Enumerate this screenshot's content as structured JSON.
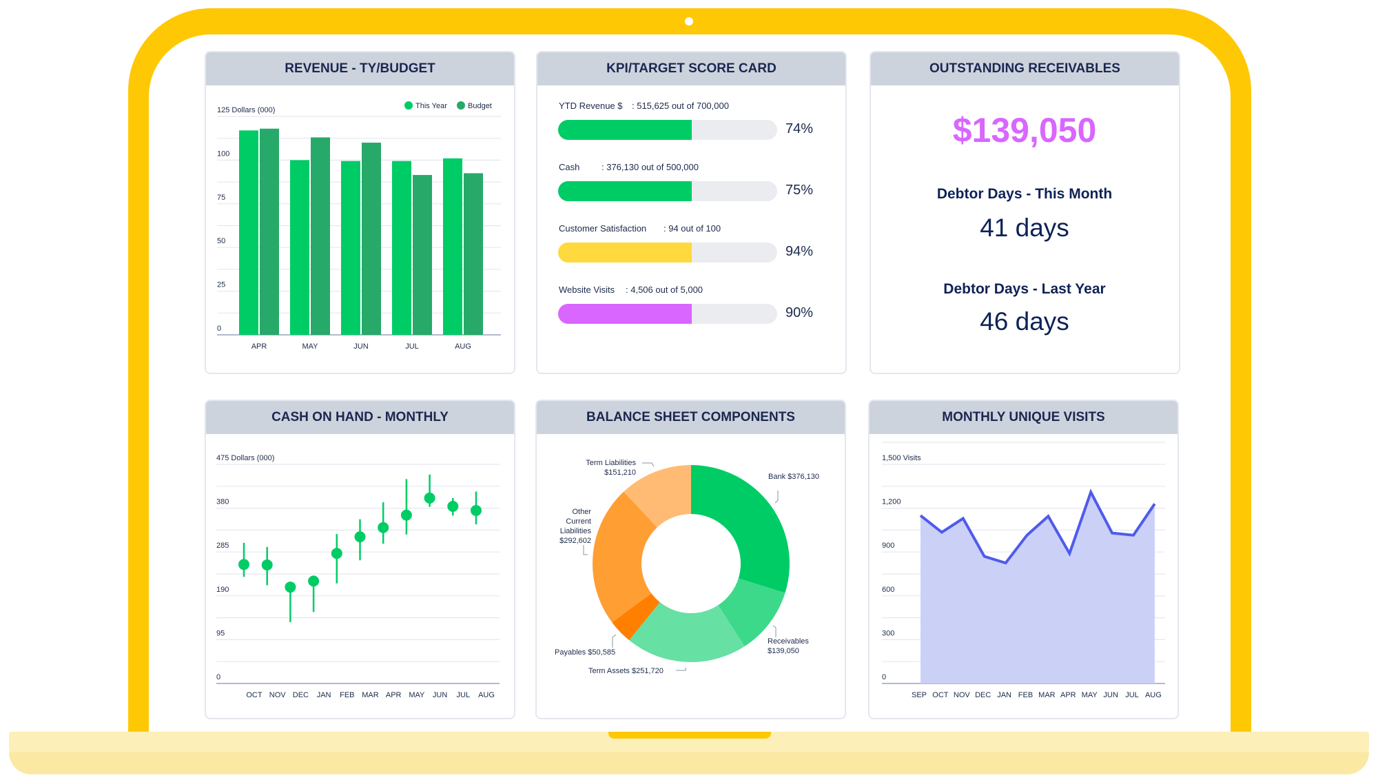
{
  "colors": {
    "bezel": "#FFC805",
    "header_bg": "#CDD3DD",
    "this_year": "#00CC66",
    "budget": "#27A96A",
    "kpi_green": "#00CC66",
    "kpi_yellow": "#FFD93D",
    "kpi_purple": "#D966FF",
    "visits_line": "#4F5BEB",
    "visits_fill": "#C8CEF7",
    "receivables_amount": "#D966FF"
  },
  "panels": {
    "revenue": {
      "title": "REVENUE - TY/BUDGET"
    },
    "kpi": {
      "title": "KPI/TARGET SCORE CARD"
    },
    "receivables": {
      "title": "OUTSTANDING RECEIVABLES"
    },
    "cash": {
      "title": "CASH ON HAND - MONTHLY"
    },
    "balance": {
      "title": "BALANCE SHEET COMPONENTS"
    },
    "visits": {
      "title": "MONTHLY UNIQUE VISITS"
    }
  },
  "kpi": {
    "items": [
      {
        "label": "YTD Revenue $",
        "detail": ": 515,625 out of 700,000",
        "percent": "74%",
        "fill": 0.61,
        "color": "#00CC66"
      },
      {
        "label": "Cash",
        "detail": ": 376,130 out of 500,000",
        "percent": "75%",
        "fill": 0.61,
        "color": "#00CC66"
      },
      {
        "label": "Customer Satisfaction",
        "detail": ": 94 out of 100",
        "percent": "94%",
        "fill": 0.61,
        "color": "#FFD93D"
      },
      {
        "label": "Website Visits",
        "detail": ": 4,506 out of 5,000",
        "percent": "90%",
        "fill": 0.61,
        "color": "#D966FF"
      }
    ]
  },
  "receivables": {
    "amount": "$139,050",
    "this_month_label": "Debtor Days - This Month",
    "this_month_value": "41 days",
    "last_year_label": "Debtor Days - Last Year",
    "last_year_value": "46 days"
  },
  "chart_data": [
    {
      "type": "bar",
      "title": "REVENUE - TY/BUDGET",
      "ylabel": "Dollars (000)",
      "categories": [
        "APR",
        "MAY",
        "JUN",
        "JUL",
        "AUG"
      ],
      "series": [
        {
          "name": "This Year",
          "values": [
            117,
            100,
            99.5,
            99.5,
            101
          ]
        },
        {
          "name": "Budget",
          "values": [
            118,
            113,
            110,
            91.5,
            92.5
          ]
        }
      ],
      "ylim": [
        0,
        125
      ],
      "yticks": [
        "0",
        "25",
        "50",
        "75",
        "100",
        "125"
      ],
      "grid": true,
      "legend": "top-right"
    },
    {
      "type": "scatter",
      "title": "CASH ON HAND - MONTHLY",
      "ylabel": "Dollars (000)",
      "categories": [
        "OCT",
        "NOV",
        "DEC",
        "JAN",
        "FEB",
        "MAR",
        "APR",
        "MAY",
        "JUN",
        "JUL",
        "AUG"
      ],
      "values": [
        258,
        257,
        209,
        222,
        282,
        318,
        338,
        365,
        402,
        384,
        375
      ],
      "high": [
        305,
        296,
        209,
        222,
        324,
        356,
        393,
        443,
        453,
        402,
        416
      ],
      "low": [
        231,
        213,
        133,
        155,
        217,
        267,
        303,
        323,
        383,
        364,
        345
      ],
      "ylim": [
        0,
        475
      ],
      "yticks": [
        "0",
        "95",
        "190",
        "285",
        "380",
        "475"
      ],
      "grid": true
    },
    {
      "type": "pie",
      "title": "BALANCE SHEET COMPONENTS",
      "slices": [
        {
          "label": "Bank",
          "value_label": "$376,130",
          "value": 376130,
          "color": "#00CC66"
        },
        {
          "label": "Receivables",
          "value_label": "$139,050",
          "value": 139050,
          "color": "#3DD98A"
        },
        {
          "label": "Term  Assets",
          "value_label": "$251,720",
          "value": 251720,
          "color": "#66E0A3"
        },
        {
          "label": "Payables",
          "value_label": "$50,585",
          "value": 50585,
          "color": "#FF8000"
        },
        {
          "label": "Other Current Liabilities",
          "value_label": "$292,602",
          "value": 292602,
          "color": "#FF9E33"
        },
        {
          "label": "Term Liabilities",
          "value_label": "$151,210",
          "value": 151210,
          "color": "#FFBB73"
        }
      ]
    },
    {
      "type": "area",
      "title": "MONTHLY UNIQUE VISITS",
      "ylabel": "Visits",
      "categories": [
        "SEP",
        "OCT",
        "NOV",
        "DEC",
        "JAN",
        "FEB",
        "MAR",
        "APR",
        "MAY",
        "JUN",
        "JUL",
        "AUG"
      ],
      "values": [
        1150,
        1035,
        1130,
        870,
        825,
        1015,
        1145,
        890,
        1310,
        1030,
        1015,
        1230
      ],
      "ylim": [
        0,
        1500
      ],
      "yticks": [
        "0",
        "300",
        "600",
        "900",
        "1,200",
        "1,500"
      ],
      "grid": true
    }
  ]
}
